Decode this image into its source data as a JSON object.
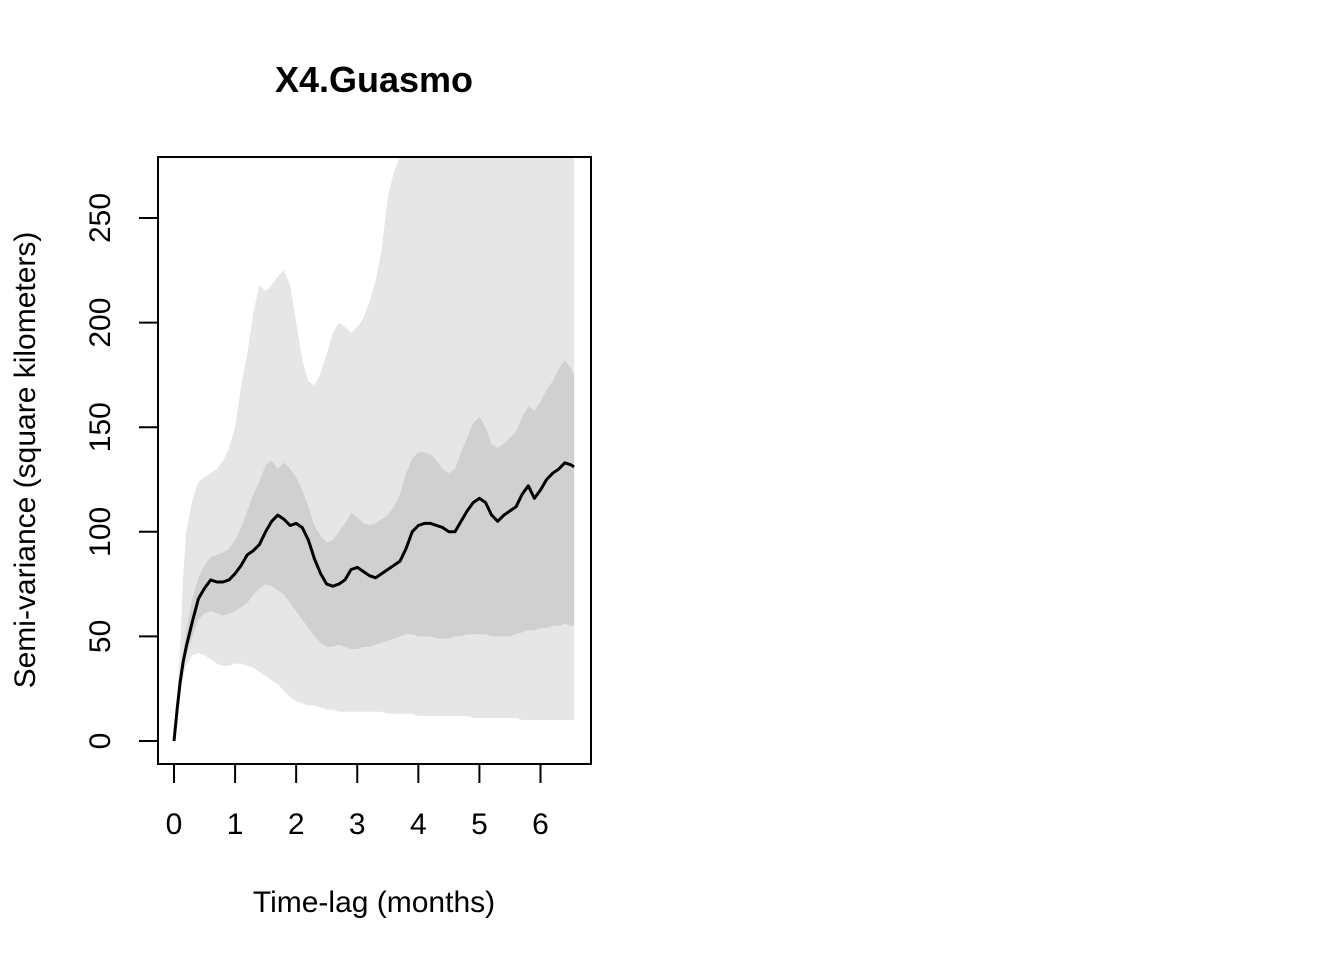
{
  "chart_data": {
    "type": "line",
    "title": "X4.Guasmo",
    "xlabel": "Time-lag (months)",
    "ylabel": "Semi-variance (square kilometers)",
    "xlim": [
      0,
      6.6
    ],
    "ylim": [
      0,
      280
    ],
    "xticks": [
      "0",
      "1",
      "2",
      "3",
      "4",
      "5",
      "6"
    ],
    "yticks": [
      "0",
      "50",
      "100",
      "150",
      "200",
      "250"
    ],
    "grid": false,
    "colors": {
      "outer_band": "#e6e6e6",
      "inner_band": "#d0d0d0",
      "line": "#000000",
      "axis": "#000000"
    },
    "x": [
      0,
      0.05,
      0.1,
      0.15,
      0.2,
      0.3,
      0.4,
      0.5,
      0.6,
      0.7,
      0.8,
      0.9,
      1.0,
      1.1,
      1.2,
      1.3,
      1.4,
      1.5,
      1.6,
      1.7,
      1.8,
      1.9,
      2.0,
      2.1,
      2.2,
      2.3,
      2.4,
      2.5,
      2.6,
      2.7,
      2.8,
      2.9,
      3.0,
      3.1,
      3.2,
      3.3,
      3.4,
      3.5,
      3.6,
      3.7,
      3.8,
      3.9,
      4.0,
      4.1,
      4.2,
      4.3,
      4.4,
      4.5,
      4.6,
      4.7,
      4.8,
      4.9,
      5.0,
      5.1,
      5.2,
      5.3,
      5.4,
      5.5,
      5.6,
      5.7,
      5.8,
      5.9,
      6.0,
      6.1,
      6.2,
      6.3,
      6.4,
      6.5,
      6.55
    ],
    "series": [
      {
        "values": [
          0,
          15,
          28,
          38,
          45,
          57,
          68,
          73,
          77,
          76,
          76,
          77,
          80,
          84,
          89,
          91,
          94,
          100,
          105,
          108,
          106,
          103,
          104,
          102,
          96,
          87,
          80,
          75,
          74,
          75,
          77,
          82,
          83,
          81,
          79,
          78,
          80,
          82,
          84,
          86,
          92,
          100,
          103,
          104,
          104,
          103,
          102,
          100,
          100,
          105,
          110,
          114,
          116,
          114,
          108,
          105,
          108,
          110,
          112,
          118,
          122,
          116,
          120,
          125,
          128,
          130,
          133,
          132,
          131
        ]
      }
    ],
    "inner_band": {
      "upper": [
        0,
        16,
        30,
        42,
        52,
        68,
        78,
        84,
        88,
        89,
        90,
        92,
        96,
        102,
        110,
        118,
        124,
        132,
        134,
        130,
        133,
        130,
        126,
        120,
        112,
        103,
        98,
        95,
        96,
        100,
        104,
        109,
        107,
        104,
        103,
        104,
        106,
        108,
        112,
        118,
        128,
        135,
        138,
        138,
        137,
        134,
        130,
        128,
        130,
        138,
        145,
        152,
        155,
        150,
        142,
        140,
        142,
        145,
        148,
        155,
        160,
        158,
        162,
        168,
        172,
        178,
        182,
        178,
        175
      ],
      "lower": [
        0,
        13,
        25,
        34,
        40,
        50,
        58,
        61,
        62,
        61,
        60,
        61,
        62,
        64,
        66,
        70,
        73,
        75,
        74,
        72,
        70,
        66,
        62,
        58,
        54,
        50,
        47,
        45,
        45,
        46,
        45,
        44,
        44,
        45,
        45,
        46,
        47,
        48,
        49,
        50,
        51,
        51,
        50,
        50,
        50,
        49,
        49,
        49,
        50,
        50,
        51,
        51,
        51,
        51,
        50,
        50,
        50,
        50,
        51,
        52,
        53,
        53,
        54,
        54,
        55,
        55,
        56,
        55,
        55
      ]
    },
    "outer_band": {
      "upper": [
        0,
        18,
        45,
        80,
        100,
        115,
        124,
        126,
        128,
        130,
        134,
        140,
        150,
        170,
        185,
        205,
        218,
        215,
        218,
        222,
        225,
        218,
        200,
        182,
        172,
        170,
        176,
        185,
        195,
        200,
        198,
        195,
        198,
        202,
        210,
        220,
        235,
        260,
        272,
        280,
        280,
        280,
        280,
        280,
        280,
        280,
        280,
        280,
        280,
        280,
        280,
        280,
        280,
        280,
        280,
        280,
        280,
        280,
        280,
        280,
        280,
        280,
        280,
        280,
        280,
        280,
        280,
        280,
        280
      ],
      "lower": [
        0,
        12,
        22,
        30,
        36,
        41,
        42,
        41,
        39,
        37,
        36,
        36,
        37,
        37,
        36,
        35,
        33,
        31,
        29,
        27,
        24,
        21,
        19,
        18,
        17,
        17,
        16,
        15,
        15,
        14,
        14,
        14,
        14,
        14,
        14,
        14,
        14,
        13,
        13,
        13,
        13,
        13,
        12,
        12,
        12,
        12,
        12,
        12,
        12,
        12,
        12,
        11,
        11,
        11,
        11,
        11,
        11,
        11,
        11,
        10,
        10,
        10,
        10,
        10,
        10,
        10,
        10,
        10,
        10
      ]
    }
  }
}
